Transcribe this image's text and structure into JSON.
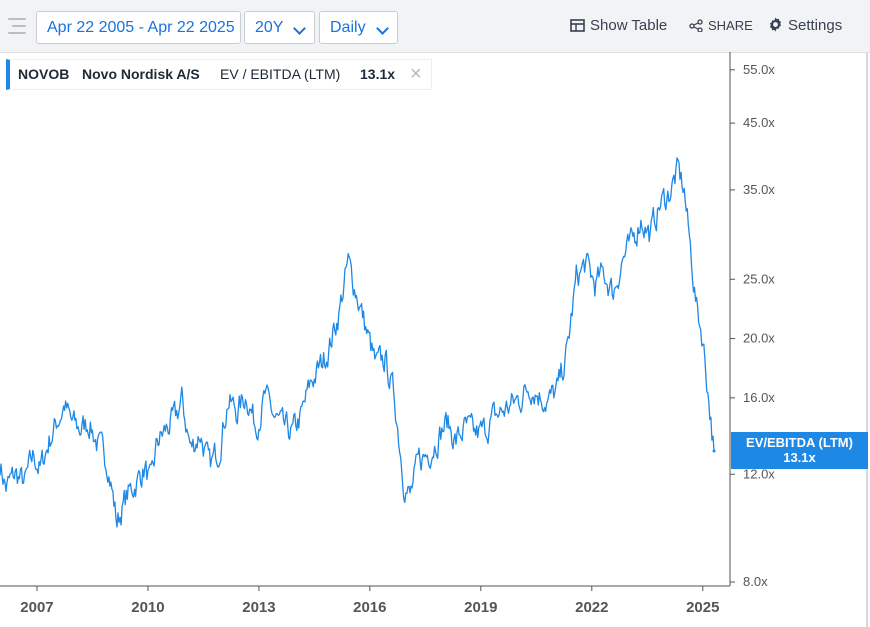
{
  "toolbar": {
    "date_range": "Apr 22 2005 - Apr 22 2025",
    "period": "20Y",
    "frequency": "Daily",
    "show_table": "Show Table",
    "share": "SHARE",
    "settings": "Settings",
    "icons": [
      "menu-icon",
      "table-icon",
      "share-icon",
      "gear-icon"
    ]
  },
  "legend": {
    "ticker": "NOVOB",
    "company": "Novo Nordisk A/S",
    "metric": "EV / EBITDA (LTM)",
    "value": "13.1x"
  },
  "badge": {
    "label": "EV/EBITDA (LTM)",
    "value": "13.1x"
  },
  "colors": {
    "line": "#1e88e5",
    "accent": "#1a73d9",
    "badge_bg": "#1e88e5"
  },
  "chart_data": {
    "type": "line",
    "title": "",
    "xlabel": "",
    "ylabel": "",
    "y_scale": "log",
    "ylim": [
      8.0,
      56.0
    ],
    "xlim": [
      "2006-01-01",
      "2025-06-20"
    ],
    "grid": false,
    "legend": "top-left",
    "y_ticks": [
      "55.0x",
      "45.0x",
      "35.0x",
      "25.0x",
      "20.0x",
      "16.0x",
      "12.0x",
      "8.0x"
    ],
    "y_tick_values": [
      55,
      45,
      35,
      25,
      20,
      16,
      12,
      8
    ],
    "x_ticks": [
      "2007",
      "2010",
      "2013",
      "2016",
      "2019",
      "2022",
      "2025"
    ],
    "series": [
      {
        "name": "EV/EBITDA (LTM)",
        "color": "#1e88e5",
        "points": [
          [
            "2006-01-01",
            12.5
          ],
          [
            "2006-03-01",
            11.4
          ],
          [
            "2006-06-01",
            12.0
          ],
          [
            "2006-09-01",
            11.6
          ],
          [
            "2006-12-01",
            12.9
          ],
          [
            "2007-02-01",
            12.2
          ],
          [
            "2007-05-01",
            13.6
          ],
          [
            "2007-08-01",
            14.8
          ],
          [
            "2007-10-01",
            15.6
          ],
          [
            "2007-12-01",
            14.6
          ],
          [
            "2008-03-01",
            14.2
          ],
          [
            "2008-06-01",
            14.6
          ],
          [
            "2008-09-01",
            13.3
          ],
          [
            "2008-12-01",
            12.6
          ],
          [
            "2009-03-01",
            10.0
          ],
          [
            "2009-06-01",
            11.0
          ],
          [
            "2009-09-01",
            11.6
          ],
          [
            "2009-12-01",
            12.3
          ],
          [
            "2010-02-01",
            11.5
          ],
          [
            "2010-04-01",
            13.5
          ],
          [
            "2010-07-01",
            14.2
          ],
          [
            "2010-10-01",
            14.8
          ],
          [
            "2010-12-01",
            15.8
          ],
          [
            "2011-03-01",
            13.2
          ],
          [
            "2011-06-01",
            14.0
          ],
          [
            "2011-09-01",
            12.3
          ],
          [
            "2011-12-01",
            13.2
          ],
          [
            "2012-03-01",
            15.8
          ],
          [
            "2012-06-01",
            15.2
          ],
          [
            "2012-09-01",
            16.2
          ],
          [
            "2012-12-01",
            14.4
          ],
          [
            "2013-03-01",
            16.0
          ],
          [
            "2013-06-01",
            14.9
          ],
          [
            "2013-09-01",
            14.2
          ],
          [
            "2013-12-01",
            14.0
          ],
          [
            "2014-03-01",
            15.0
          ],
          [
            "2014-06-01",
            17.0
          ],
          [
            "2014-09-01",
            18.0
          ],
          [
            "2014-12-01",
            19.5
          ],
          [
            "2015-03-01",
            22.0
          ],
          [
            "2015-06-01",
            26.5
          ],
          [
            "2015-09-01",
            23.5
          ],
          [
            "2015-12-01",
            20.5
          ],
          [
            "2016-03-01",
            18.0
          ],
          [
            "2016-06-01",
            18.5
          ],
          [
            "2016-09-01",
            16.0
          ],
          [
            "2016-12-01",
            11.8
          ],
          [
            "2017-02-01",
            11.0
          ],
          [
            "2017-05-01",
            12.6
          ],
          [
            "2017-08-01",
            13.0
          ],
          [
            "2017-11-01",
            13.8
          ],
          [
            "2018-02-01",
            14.6
          ],
          [
            "2018-05-01",
            13.6
          ],
          [
            "2018-08-01",
            14.3
          ],
          [
            "2018-11-01",
            13.9
          ],
          [
            "2019-02-01",
            14.1
          ],
          [
            "2019-05-01",
            14.8
          ],
          [
            "2019-08-01",
            15.2
          ],
          [
            "2019-11-01",
            15.6
          ],
          [
            "2020-02-01",
            16.0
          ],
          [
            "2020-05-01",
            16.8
          ],
          [
            "2020-08-01",
            16.2
          ],
          [
            "2020-11-01",
            15.8
          ],
          [
            "2021-02-01",
            16.5
          ],
          [
            "2021-05-01",
            19.0
          ],
          [
            "2021-08-01",
            25.0
          ],
          [
            "2021-11-01",
            26.5
          ],
          [
            "2022-02-01",
            24.5
          ],
          [
            "2022-05-01",
            25.5
          ],
          [
            "2022-08-01",
            23.8
          ],
          [
            "2022-11-01",
            27.0
          ],
          [
            "2023-02-01",
            28.5
          ],
          [
            "2023-05-01",
            31.5
          ],
          [
            "2023-08-01",
            29.5
          ],
          [
            "2023-11-01",
            33.0
          ],
          [
            "2024-02-01",
            34.5
          ],
          [
            "2024-05-01",
            37.5
          ],
          [
            "2024-07-01",
            35.0
          ],
          [
            "2024-09-01",
            28.0
          ],
          [
            "2024-11-01",
            22.5
          ],
          [
            "2025-01-01",
            20.0
          ],
          [
            "2025-03-01",
            16.0
          ],
          [
            "2025-04-22",
            13.1
          ]
        ]
      }
    ]
  }
}
